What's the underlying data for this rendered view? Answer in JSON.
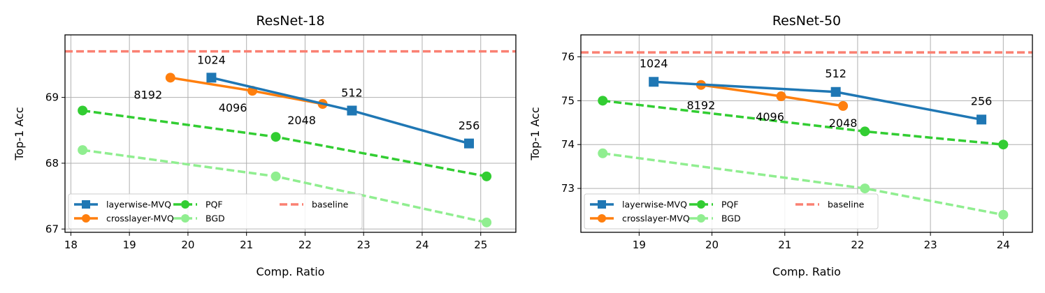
{
  "chart_data": [
    {
      "type": "line",
      "title": "ResNet-18",
      "xlabel": "Comp. Ratio",
      "ylabel": "Top-1 Acc",
      "xlim": [
        17.9,
        25.6
      ],
      "ylim": [
        66.95,
        69.95
      ],
      "xticks": [
        18,
        19,
        20,
        21,
        22,
        23,
        24,
        25
      ],
      "yticks": [
        67,
        68,
        69
      ],
      "grid": true,
      "legend": {
        "placement": "bottom-left",
        "columns": 3
      },
      "series": [
        {
          "name": "layerwise-MVQ",
          "color": "#1f77b4",
          "style": "solid",
          "marker": "square",
          "x": [
            20.4,
            22.8,
            24.8
          ],
          "y": [
            69.3,
            68.8,
            68.3
          ],
          "labels": [
            "1024",
            "512",
            "256"
          ]
        },
        {
          "name": "crosslayer-MVQ",
          "color": "#ff7f0e",
          "style": "solid",
          "marker": "circle",
          "x": [
            19.7,
            21.1,
            22.3
          ],
          "y": [
            69.3,
            69.1,
            68.9
          ],
          "labels": [
            "8192",
            "4096",
            "2048"
          ]
        },
        {
          "name": "PQF",
          "color": "#32cd32",
          "style": "dashed",
          "marker": "circle",
          "x": [
            18.2,
            21.5,
            25.1
          ],
          "y": [
            68.8,
            68.4,
            67.8
          ]
        },
        {
          "name": "BGD",
          "color": "#90ee90",
          "style": "dashed",
          "marker": "circle",
          "x": [
            18.2,
            21.5,
            25.1
          ],
          "y": [
            68.2,
            67.8,
            67.1
          ]
        },
        {
          "name": "baseline",
          "color": "#fa8072",
          "style": "dashed",
          "marker": "none",
          "hline": 69.7
        }
      ]
    },
    {
      "type": "line",
      "title": "ResNet-50",
      "xlabel": "Comp. Ratio",
      "ylabel": "Top-1 Acc",
      "xlim": [
        18.2,
        24.4
      ],
      "ylim": [
        72.0,
        76.5
      ],
      "xticks": [
        19,
        20,
        21,
        22,
        23,
        24
      ],
      "yticks": [
        73,
        74,
        75,
        76
      ],
      "grid": true,
      "legend": {
        "placement": "bottom-left",
        "columns": 3
      },
      "series": [
        {
          "name": "layerwise-MVQ",
          "color": "#1f77b4",
          "style": "solid",
          "marker": "square",
          "x": [
            19.2,
            21.7,
            23.7
          ],
          "y": [
            75.43,
            75.2,
            74.57
          ],
          "labels": [
            "1024",
            "512",
            "256"
          ]
        },
        {
          "name": "crosslayer-MVQ",
          "color": "#ff7f0e",
          "style": "solid",
          "marker": "circle",
          "x": [
            19.85,
            20.95,
            21.8
          ],
          "y": [
            75.36,
            75.1,
            74.88
          ],
          "labels": [
            "8192",
            "4096",
            "2048"
          ]
        },
        {
          "name": "PQF",
          "color": "#32cd32",
          "style": "dashed",
          "marker": "circle",
          "x": [
            18.5,
            22.1,
            24.0
          ],
          "y": [
            75.0,
            74.3,
            74.0
          ]
        },
        {
          "name": "BGD",
          "color": "#90ee90",
          "style": "dashed",
          "marker": "circle",
          "x": [
            18.5,
            22.1,
            24.0
          ],
          "y": [
            73.8,
            73.0,
            72.4
          ]
        },
        {
          "name": "baseline",
          "color": "#fa8072",
          "style": "dashed",
          "marker": "none",
          "hline": 76.1
        }
      ]
    }
  ]
}
